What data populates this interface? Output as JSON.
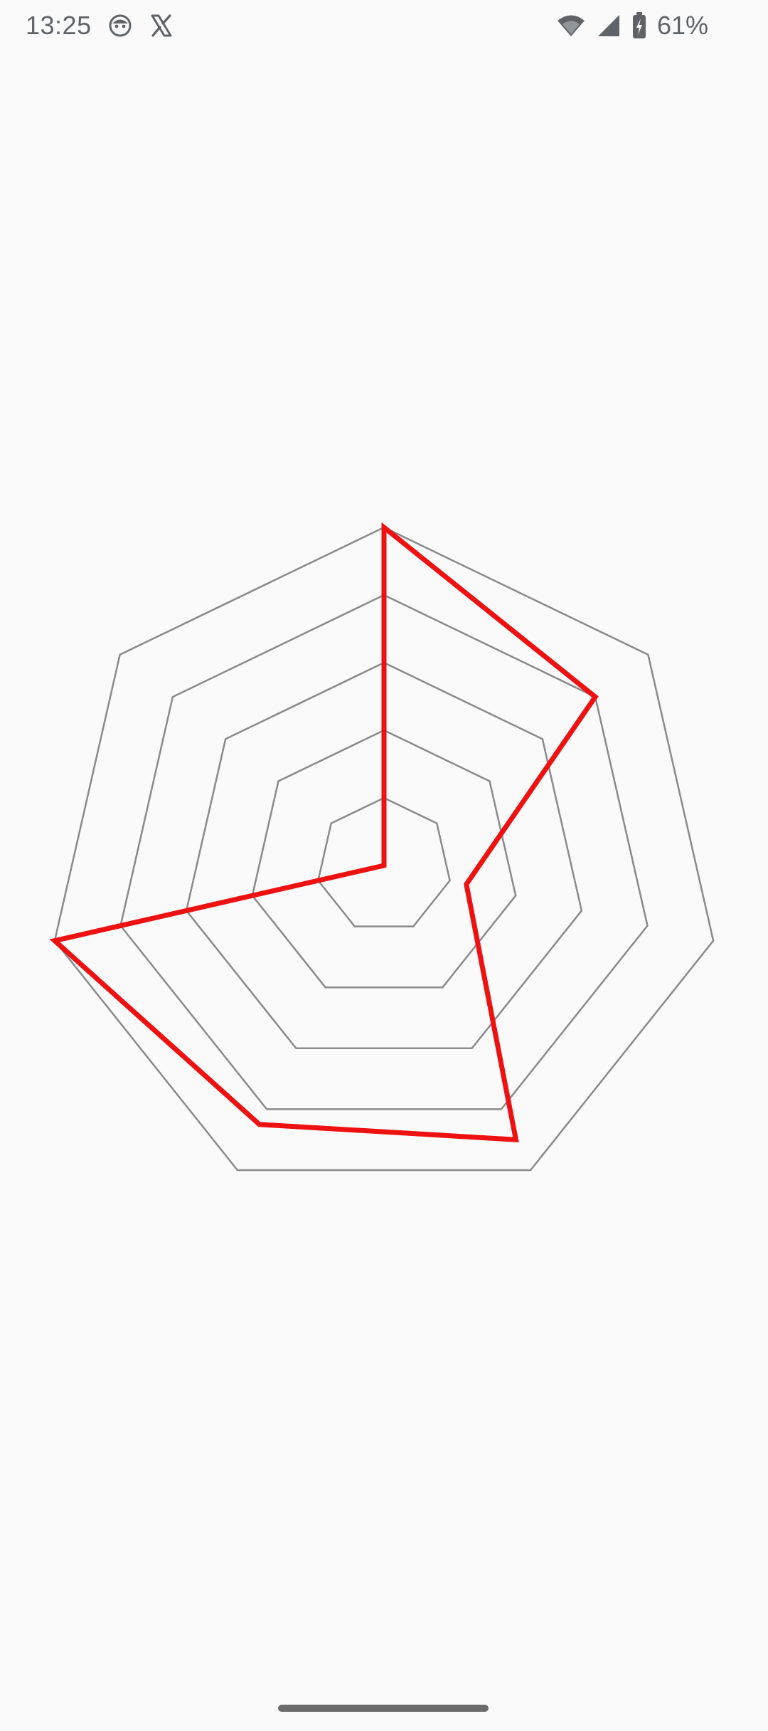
{
  "status_bar": {
    "time": "13:25",
    "battery_percent": "61%",
    "notification_icons": [
      "android-face-icon",
      "x-logo-icon"
    ],
    "system_icons": [
      "wifi-icon",
      "cellular-signal-icon",
      "battery-charging-icon"
    ]
  },
  "chart_data": {
    "type": "radar",
    "axes_count": 7,
    "levels": 5,
    "value_range": [
      0,
      1
    ],
    "grid_color": "#8a8a8a",
    "series": [
      {
        "color": "#ee1111",
        "values": [
          1.0,
          0.8,
          0.25,
          0.9,
          0.85,
          1.0,
          0.0
        ]
      }
    ]
  }
}
